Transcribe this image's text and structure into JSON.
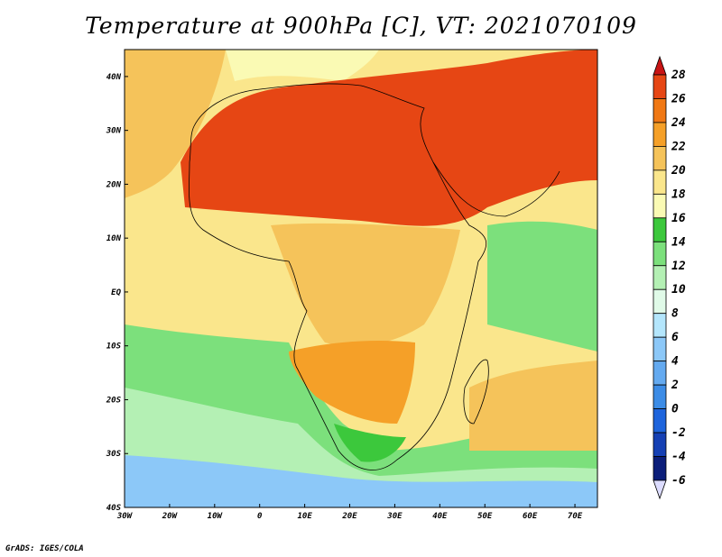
{
  "title": "Temperature at 900hPa [C], VT: 2021070109",
  "credit": "GrADS: IGES/COLA",
  "map": {
    "lon_range": [
      -30,
      75
    ],
    "lat_range": [
      -40,
      45
    ],
    "lon_ticks": [
      {
        "value": -30,
        "label": "30W"
      },
      {
        "value": -20,
        "label": "20W"
      },
      {
        "value": -10,
        "label": "10W"
      },
      {
        "value": 0,
        "label": "0"
      },
      {
        "value": 10,
        "label": "10E"
      },
      {
        "value": 20,
        "label": "20E"
      },
      {
        "value": 30,
        "label": "30E"
      },
      {
        "value": 40,
        "label": "40E"
      },
      {
        "value": 50,
        "label": "50E"
      },
      {
        "value": 60,
        "label": "60E"
      },
      {
        "value": 70,
        "label": "70E"
      }
    ],
    "lat_ticks": [
      {
        "value": 40,
        "label": "40N"
      },
      {
        "value": 30,
        "label": "30N"
      },
      {
        "value": 20,
        "label": "20N"
      },
      {
        "value": 10,
        "label": "10N"
      },
      {
        "value": 0,
        "label": "EQ"
      },
      {
        "value": -10,
        "label": "10S"
      },
      {
        "value": -20,
        "label": "20S"
      },
      {
        "value": -30,
        "label": "30S"
      },
      {
        "value": -40,
        "label": "40S"
      }
    ]
  },
  "colorbar": {
    "levels": [
      -6,
      -4,
      -2,
      0,
      2,
      4,
      6,
      8,
      10,
      12,
      14,
      16,
      18,
      20,
      22,
      24,
      26,
      28
    ],
    "colors": [
      "#dcdcff",
      "#0b1e7a",
      "#1540b4",
      "#1e64dc",
      "#3c8ce6",
      "#64aaf0",
      "#8cc8f8",
      "#b4e6fc",
      "#e0fae8",
      "#b4f0b4",
      "#7ce07c",
      "#3cc83c",
      "#fafab4",
      "#fae68c",
      "#f5c35a",
      "#f5a028",
      "#f07814",
      "#e64614",
      "#c81414"
    ]
  },
  "regions": [
    {
      "name": "far-south-ocean",
      "value": 5
    },
    {
      "name": "south-atlantic-cool",
      "value": 10
    },
    {
      "name": "south-atlantic-green",
      "value": 13
    },
    {
      "name": "atlantic-warm",
      "value": 19
    },
    {
      "name": "indian-ocean-green",
      "value": 13
    },
    {
      "name": "indian-ocean-warm",
      "value": 20
    },
    {
      "name": "mediterranean",
      "value": 17
    },
    {
      "name": "sahara-north",
      "value": 27
    },
    {
      "name": "central-africa",
      "value": 21
    },
    {
      "name": "southern-africa",
      "value": 23
    },
    {
      "name": "south-africa-coast",
      "value": 14
    }
  ]
}
